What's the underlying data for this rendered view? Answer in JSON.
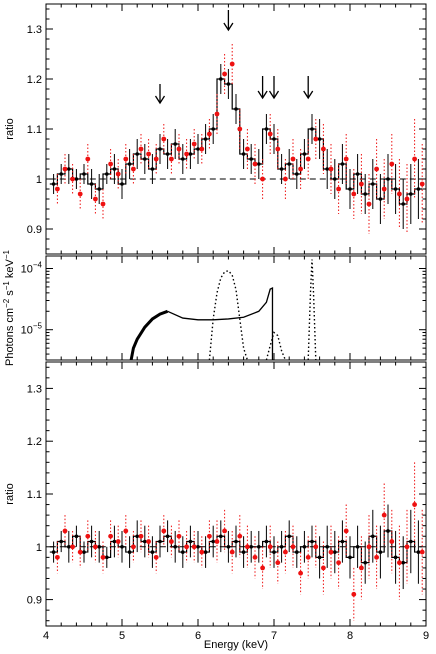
{
  "chart_data": [
    {
      "type": "scatter",
      "panel": "top",
      "ylabel": "ratio",
      "xlim": [
        4,
        9
      ],
      "ylim": [
        0.85,
        1.35
      ],
      "yticks": [
        0.9,
        1,
        1.1,
        1.2,
        1.3
      ],
      "ytick_labels": [
        "0.9",
        "1",
        "1.1",
        "1.2",
        "1.3"
      ],
      "reference_line": 1.0,
      "series": [
        {
          "color": "#000000",
          "style": "step-with-errorbars",
          "x": [
            4.1,
            4.2,
            4.3,
            4.4,
            4.5,
            4.6,
            4.7,
            4.8,
            4.9,
            5.0,
            5.1,
            5.2,
            5.3,
            5.4,
            5.5,
            5.6,
            5.7,
            5.8,
            5.9,
            6.0,
            6.1,
            6.2,
            6.3,
            6.4,
            6.5,
            6.6,
            6.7,
            6.8,
            6.9,
            7.0,
            7.1,
            7.2,
            7.3,
            7.4,
            7.5,
            7.6,
            7.7,
            7.8,
            7.9,
            8.0,
            8.1,
            8.2,
            8.3,
            8.4,
            8.5,
            8.6,
            8.7,
            8.8,
            8.9
          ],
          "y": [
            0.99,
            1.01,
            1.02,
            1.0,
            1.01,
            0.99,
            0.98,
            1.01,
            1.02,
            0.99,
            1.03,
            1.05,
            1.04,
            1.02,
            1.06,
            1.05,
            1.07,
            1.04,
            1.05,
            1.06,
            1.08,
            1.1,
            1.2,
            1.19,
            1.14,
            1.05,
            1.04,
            1.03,
            1.1,
            1.08,
            1.02,
            1.03,
            1.01,
            1.05,
            1.1,
            1.08,
            1.02,
            1.0,
            1.03,
            0.98,
            1.01,
            0.97,
            0.99,
            0.96,
            1.0,
            0.98,
            0.95,
            0.97,
            0.98
          ],
          "err": [
            0.02,
            0.02,
            0.03,
            0.02,
            0.02,
            0.03,
            0.03,
            0.02,
            0.03,
            0.03,
            0.03,
            0.03,
            0.03,
            0.03,
            0.03,
            0.03,
            0.03,
            0.03,
            0.03,
            0.03,
            0.03,
            0.03,
            0.03,
            0.03,
            0.03,
            0.03,
            0.03,
            0.03,
            0.03,
            0.03,
            0.03,
            0.03,
            0.03,
            0.03,
            0.03,
            0.04,
            0.04,
            0.04,
            0.04,
            0.04,
            0.04,
            0.04,
            0.05,
            0.05,
            0.05,
            0.05,
            0.05,
            0.06,
            0.06
          ]
        },
        {
          "color": "#ee1111",
          "style": "dotted-errorbars",
          "x": [
            4.15,
            4.25,
            4.35,
            4.45,
            4.55,
            4.65,
            4.75,
            4.85,
            4.95,
            5.05,
            5.15,
            5.25,
            5.35,
            5.45,
            5.55,
            5.65,
            5.75,
            5.85,
            5.95,
            6.05,
            6.15,
            6.25,
            6.35,
            6.45,
            6.55,
            6.65,
            6.75,
            6.85,
            6.95,
            7.05,
            7.15,
            7.25,
            7.35,
            7.45,
            7.55,
            7.65,
            7.75,
            7.85,
            7.95,
            8.05,
            8.15,
            8.25,
            8.35,
            8.45,
            8.55,
            8.65,
            8.75,
            8.85,
            8.95
          ],
          "y": [
            0.98,
            1.02,
            1.0,
            0.97,
            1.04,
            0.96,
            0.95,
            1.03,
            1.01,
            1.04,
            1.02,
            1.06,
            1.05,
            1.04,
            1.08,
            1.04,
            1.06,
            1.05,
            1.07,
            1.06,
            1.09,
            1.13,
            1.21,
            1.23,
            1.1,
            1.06,
            1.03,
            1.0,
            1.09,
            1.06,
            1.0,
            1.04,
            1.02,
            1.04,
            1.08,
            1.06,
            1.02,
            0.98,
            1.04,
            0.97,
            0.99,
            0.95,
            1.02,
            0.98,
            1.03,
            0.97,
            0.96,
            1.04,
            0.99
          ],
          "err": [
            0.03,
            0.03,
            0.03,
            0.03,
            0.03,
            0.03,
            0.03,
            0.03,
            0.03,
            0.03,
            0.03,
            0.03,
            0.03,
            0.03,
            0.03,
            0.03,
            0.03,
            0.03,
            0.03,
            0.03,
            0.03,
            0.04,
            0.04,
            0.04,
            0.04,
            0.04,
            0.04,
            0.04,
            0.04,
            0.04,
            0.04,
            0.04,
            0.04,
            0.04,
            0.04,
            0.05,
            0.05,
            0.05,
            0.05,
            0.05,
            0.06,
            0.06,
            0.06,
            0.06,
            0.06,
            0.07,
            0.07,
            0.08,
            0.08
          ]
        }
      ],
      "arrows_at_x": [
        5.5,
        6.4,
        6.85,
        7.0,
        7.45
      ]
    },
    {
      "type": "line",
      "panel": "middle",
      "ylabel_parts": [
        "Photons cm",
        "−2",
        " s",
        "−1",
        " keV",
        "−1"
      ],
      "xlim": [
        4,
        9
      ],
      "y_scale": "log",
      "ylim": [
        3.2e-06,
        0.00016
      ],
      "ytick_labels": [
        {
          "base": "10",
          "exp": "−4",
          "value": 0.0001
        },
        {
          "base": "10",
          "exp": "−5",
          "value": 1e-05
        }
      ],
      "components": [
        {
          "name": "",
          "style": "solid-thick",
          "x": [
            5.12,
            5.15,
            5.2,
            5.3,
            5.4,
            5.5,
            5.6
          ],
          "y": [
            3.2e-06,
            5e-06,
            7e-06,
            1.1e-05,
            1.5e-05,
            1.8e-05,
            2e-05
          ]
        },
        {
          "name": "",
          "style": "solid",
          "x": [
            5.6,
            5.8,
            6.0,
            6.2,
            6.4,
            6.6,
            6.8,
            6.9,
            6.95,
            6.98,
            6.98,
            7.0
          ],
          "y": [
            2e-05,
            1.55e-05,
            1.45e-05,
            1.45e-05,
            1.5e-05,
            1.6e-05,
            2e-05,
            2.8e-05,
            4.6e-05,
            4.8e-05,
            3.2e-06,
            3.2e-06
          ]
        },
        {
          "name": "",
          "style": "dotted",
          "x": [
            6.15,
            6.2,
            6.25,
            6.3,
            6.35,
            6.4,
            6.45,
            6.5,
            6.55,
            6.6,
            6.65
          ],
          "y": [
            3.2e-06,
            1.5e-05,
            4e-05,
            7e-05,
            8.8e-05,
            9.2e-05,
            7.8e-05,
            4.5e-05,
            1.5e-05,
            5e-06,
            3.2e-06
          ]
        },
        {
          "name": "",
          "style": "dotted",
          "x": [
            6.9,
            6.95,
            7.0,
            7.05,
            7.1,
            7.15
          ],
          "y": [
            3.2e-06,
            5.5e-06,
            9e-06,
            8e-06,
            4.5e-06,
            3.2e-06
          ]
        },
        {
          "name": "",
          "style": "dotted",
          "x": [
            7.45,
            7.48,
            7.5,
            7.52,
            7.55
          ],
          "y": [
            3.2e-06,
            4e-05,
            0.00014,
            4e-05,
            3.2e-06
          ]
        }
      ]
    },
    {
      "type": "scatter",
      "panel": "bottom",
      "ylabel": "ratio",
      "xlabel": "Energy (keV)",
      "xlim": [
        4,
        9
      ],
      "ylim": [
        0.85,
        1.35
      ],
      "xticks": [
        4,
        5,
        6,
        7,
        8,
        9
      ],
      "xtick_labels": [
        "4",
        "5",
        "6",
        "7",
        "8",
        "9"
      ],
      "yticks": [
        0.9,
        1,
        1.1,
        1.2,
        1.3
      ],
      "ytick_labels": [
        "0.9",
        "1",
        "1.1",
        "1.2",
        "1.3"
      ],
      "reference_line": 1.0,
      "series": [
        {
          "color": "#000000",
          "style": "step-with-errorbars",
          "x": [
            4.1,
            4.2,
            4.3,
            4.4,
            4.5,
            4.6,
            4.7,
            4.8,
            4.9,
            5.0,
            5.1,
            5.2,
            5.3,
            5.4,
            5.5,
            5.6,
            5.7,
            5.8,
            5.9,
            6.0,
            6.1,
            6.2,
            6.3,
            6.4,
            6.5,
            6.6,
            6.7,
            6.8,
            6.9,
            7.0,
            7.1,
            7.2,
            7.3,
            7.4,
            7.5,
            7.6,
            7.7,
            7.8,
            7.9,
            8.0,
            8.1,
            8.2,
            8.3,
            8.4,
            8.5,
            8.6,
            8.7,
            8.8,
            8.9
          ],
          "y": [
            0.99,
            1.01,
            1.0,
            1.02,
            0.99,
            1.01,
            1.0,
            0.98,
            1.01,
            1.0,
            0.99,
            1.02,
            1.01,
            0.99,
            1.01,
            1.02,
            1.0,
            0.99,
            1.01,
            1.0,
            0.99,
            1.01,
            1.02,
            1.0,
            1.01,
            0.99,
            1.0,
            1.0,
            1.01,
            0.99,
            1.0,
            1.02,
            0.99,
            1.0,
            1.01,
            0.98,
            1.0,
            0.99,
            1.01,
            0.98,
            1.0,
            0.97,
            1.02,
            0.99,
            1.03,
            0.98,
            0.97,
            1.01,
            0.99
          ],
          "err": [
            0.02,
            0.02,
            0.03,
            0.02,
            0.02,
            0.03,
            0.03,
            0.02,
            0.03,
            0.03,
            0.03,
            0.03,
            0.03,
            0.03,
            0.03,
            0.03,
            0.03,
            0.03,
            0.03,
            0.03,
            0.03,
            0.03,
            0.03,
            0.03,
            0.03,
            0.03,
            0.03,
            0.03,
            0.03,
            0.03,
            0.03,
            0.03,
            0.03,
            0.03,
            0.03,
            0.04,
            0.04,
            0.04,
            0.04,
            0.04,
            0.04,
            0.04,
            0.05,
            0.05,
            0.05,
            0.05,
            0.05,
            0.06,
            0.06
          ]
        },
        {
          "color": "#ee1111",
          "style": "dotted-errorbars",
          "x": [
            4.15,
            4.25,
            4.35,
            4.45,
            4.55,
            4.65,
            4.75,
            4.85,
            4.95,
            5.05,
            5.15,
            5.25,
            5.35,
            5.45,
            5.55,
            5.65,
            5.75,
            5.85,
            5.95,
            6.05,
            6.15,
            6.25,
            6.35,
            6.45,
            6.55,
            6.65,
            6.75,
            6.85,
            6.95,
            7.05,
            7.15,
            7.25,
            7.35,
            7.45,
            7.55,
            7.65,
            7.75,
            7.85,
            7.95,
            8.05,
            8.15,
            8.25,
            8.35,
            8.45,
            8.55,
            8.65,
            8.75,
            8.85,
            8.95
          ],
          "y": [
            0.98,
            1.03,
            1.0,
            0.99,
            1.02,
            1.0,
            0.98,
            1.02,
            1.01,
            1.03,
            1.0,
            1.02,
            1.01,
            0.98,
            1.03,
            1.01,
            1.02,
            1.0,
            1.0,
            0.99,
            1.02,
            1.01,
            1.03,
            0.99,
            1.02,
            1.0,
            0.98,
            0.96,
            1.0,
            0.97,
            0.99,
            1.0,
            0.95,
            0.98,
            1.0,
            0.96,
            0.99,
            0.97,
            1.03,
            0.91,
            0.96,
            1.0,
            0.98,
            1.06,
            1.01,
            0.97,
            1.0,
            1.08,
            0.99
          ],
          "err": [
            0.03,
            0.03,
            0.03,
            0.03,
            0.03,
            0.03,
            0.03,
            0.03,
            0.03,
            0.03,
            0.03,
            0.03,
            0.03,
            0.03,
            0.03,
            0.03,
            0.03,
            0.03,
            0.03,
            0.03,
            0.03,
            0.04,
            0.04,
            0.04,
            0.04,
            0.04,
            0.04,
            0.04,
            0.04,
            0.04,
            0.04,
            0.04,
            0.04,
            0.04,
            0.04,
            0.05,
            0.05,
            0.05,
            0.05,
            0.05,
            0.06,
            0.06,
            0.06,
            0.06,
            0.06,
            0.07,
            0.07,
            0.08,
            0.08
          ]
        }
      ]
    }
  ]
}
